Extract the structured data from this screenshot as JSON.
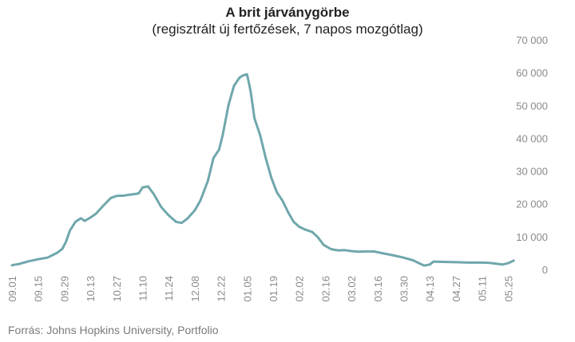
{
  "chart_data": {
    "type": "line",
    "title": "A brit járványgörbe",
    "subtitle": "(regisztrált új fertőzések, 7 napos mozgótlag)",
    "source": "Forrás: Johns Hopkins University, Portfolio",
    "xlabel": "",
    "ylabel": "",
    "ylim": [
      0,
      70000
    ],
    "y_ticks": [
      0,
      10000,
      20000,
      30000,
      40000,
      50000,
      60000,
      70000
    ],
    "y_tick_labels": [
      "0",
      "10 000",
      "20 000",
      "30 000",
      "40 000",
      "50 000",
      "60 000",
      "70 000"
    ],
    "x_tick_labels": [
      "09.01",
      "09.15",
      "09.29",
      "10.13",
      "10.27",
      "11.10",
      "11.24",
      "12.08",
      "12.22",
      "01.05",
      "01.19",
      "02.02",
      "02.16",
      "03.02",
      "03.16",
      "03.30",
      "04.13",
      "04.27",
      "05.11",
      "05.25"
    ],
    "grid": false,
    "line_color": "#6fa7ac",
    "series": [
      {
        "name": "",
        "x": [
          "09.01",
          "09.05",
          "09.10",
          "09.15",
          "09.20",
          "09.25",
          "09.28",
          "09.30",
          "10.02",
          "10.05",
          "10.08",
          "10.10",
          "10.13",
          "10.16",
          "10.20",
          "10.24",
          "10.27",
          "10.31",
          "11.03",
          "11.06",
          "11.08",
          "11.10",
          "11.13",
          "11.16",
          "11.18",
          "11.20",
          "11.24",
          "11.28",
          "12.01",
          "12.04",
          "12.08",
          "12.11",
          "12.15",
          "12.18",
          "12.21",
          "12.23",
          "12.26",
          "12.29",
          "01.01",
          "01.03",
          "01.05",
          "01.06",
          "01.07",
          "01.09",
          "01.12",
          "01.15",
          "01.18",
          "01.21",
          "01.24",
          "01.27",
          "01.30",
          "02.02",
          "02.05",
          "02.09",
          "02.12",
          "02.15",
          "02.19",
          "02.23",
          "02.26",
          "03.02",
          "03.06",
          "03.10",
          "03.14",
          "03.18",
          "03.22",
          "03.26",
          "03.30",
          "04.04",
          "04.08",
          "04.10",
          "04.13",
          "04.15",
          "04.20",
          "04.27",
          "05.04",
          "05.11",
          "05.15",
          "05.18",
          "05.22",
          "05.25",
          "05.28"
        ],
        "values": [
          1300,
          1700,
          2500,
          3100,
          3600,
          5000,
          6300,
          8500,
          11800,
          14500,
          15600,
          14800,
          15800,
          17000,
          19500,
          21800,
          22400,
          22500,
          22800,
          23000,
          23200,
          25000,
          25300,
          23000,
          21000,
          19000,
          16500,
          14500,
          14200,
          15500,
          18000,
          21000,
          27000,
          34000,
          36500,
          41000,
          50000,
          56000,
          58500,
          59200,
          59500,
          57000,
          54000,
          46000,
          41000,
          34000,
          28000,
          23500,
          21000,
          17500,
          14500,
          13000,
          12200,
          11400,
          9800,
          7500,
          6200,
          5800,
          5900,
          5600,
          5400,
          5500,
          5500,
          5000,
          4600,
          4100,
          3600,
          2800,
          1700,
          1200,
          1500,
          2400,
          2300,
          2200,
          2100,
          2100,
          2000,
          1800,
          1500,
          1900,
          2700
        ]
      }
    ]
  }
}
